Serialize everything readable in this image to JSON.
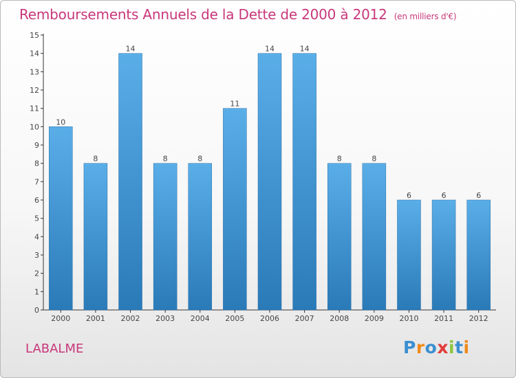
{
  "title": "Remboursements Annuels de la Dette de 2000 à 2012",
  "unit": "(en milliers d'€)",
  "commune": "LABALME",
  "logo": {
    "letters": [
      {
        "ch": "P",
        "color": "#3b8fd1"
      },
      {
        "ch": "r",
        "color": "#f08a1c"
      },
      {
        "ch": "o",
        "color": "#3b8fd1"
      },
      {
        "ch": "x",
        "color": "#e23b3b"
      },
      {
        "ch": "i",
        "color": "#8cc63f"
      },
      {
        "ch": "t",
        "color": "#3b8fd1"
      },
      {
        "ch": "i",
        "color": "#f08a1c"
      }
    ]
  },
  "chart_data": {
    "type": "bar",
    "categories": [
      "2000",
      "2001",
      "2002",
      "2003",
      "2004",
      "2005",
      "2006",
      "2007",
      "2008",
      "2009",
      "2010",
      "2011",
      "2012"
    ],
    "values": [
      10,
      8,
      14,
      8,
      8,
      11,
      14,
      14,
      8,
      8,
      6,
      6,
      6
    ],
    "data_labels": [
      "10",
      "8",
      "14",
      "8",
      "8",
      "11",
      "14",
      "14",
      "8",
      "8",
      "6",
      "6",
      "6"
    ],
    "yticks": [
      "0",
      "1",
      "2",
      "3",
      "4",
      "5",
      "6",
      "7",
      "8",
      "9",
      "10",
      "11",
      "12",
      "13",
      "14",
      "15"
    ],
    "ylim": [
      0,
      15
    ],
    "bar_color_light": "#5aaee8",
    "bar_color_dark": "#2a7ab8",
    "grid": false
  }
}
